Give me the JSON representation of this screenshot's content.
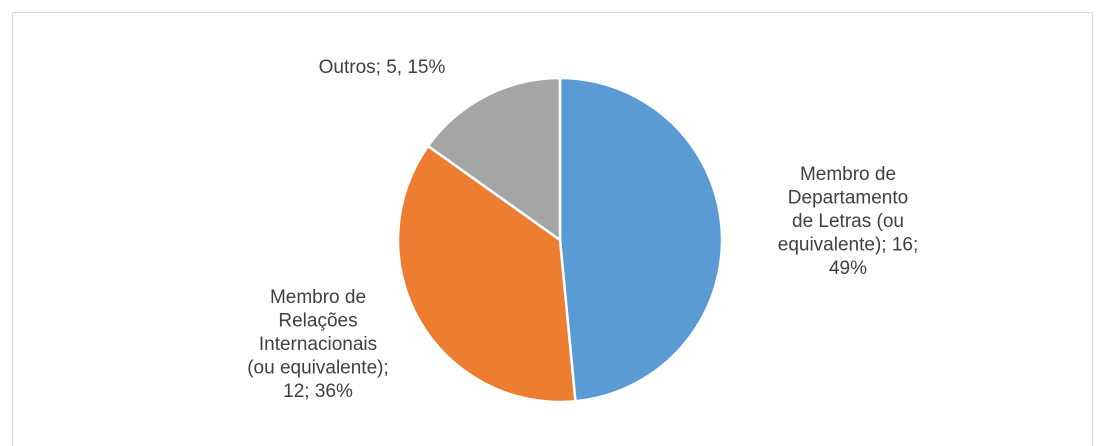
{
  "chart_data": {
    "type": "pie",
    "values": [
      16,
      12,
      5
    ],
    "value_labels": [
      "Membro de Departamento de Letras (ou equivalente); 16; 49%",
      "Membro de Relações Internacionais (ou equivalente); 12; 36%",
      "Outros; 5, 15%"
    ],
    "colors": [
      "#5b9bd5",
      "#ed7d31",
      "#a5a5a5"
    ]
  }
}
